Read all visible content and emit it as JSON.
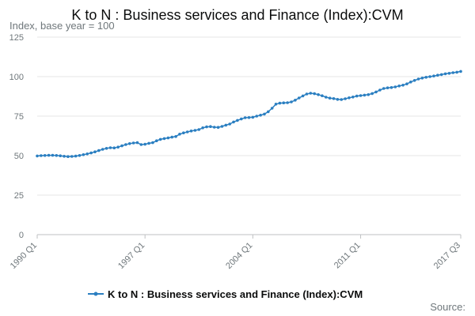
{
  "chart_data": {
    "type": "line",
    "title": "K to N : Business services and Finance (Index):CVM",
    "ylabel": "Index, base year = 100",
    "xlabel": "",
    "ylim": [
      0,
      125
    ],
    "yticks": [
      0,
      25,
      50,
      75,
      100,
      125
    ],
    "xtick_labels": [
      {
        "label": "1990 Q1",
        "index": 0
      },
      {
        "label": "1997 Q1",
        "index": 28
      },
      {
        "label": "2004 Q1",
        "index": 56
      },
      {
        "label": "2011 Q1",
        "index": 84
      },
      {
        "label": "2017 Q3",
        "index": 110
      }
    ],
    "grid": true,
    "legend_position": "bottom",
    "series": [
      {
        "name": "K to N : Business services and Finance (Index):CVM",
        "color": "#2b7fc1",
        "values": [
          49.8,
          50.0,
          50.1,
          50.2,
          50.2,
          50.1,
          49.9,
          49.6,
          49.4,
          49.5,
          49.7,
          50.1,
          50.6,
          51.1,
          51.7,
          52.4,
          53.2,
          54.0,
          54.6,
          55.0,
          54.9,
          55.4,
          56.2,
          57.0,
          57.6,
          58.0,
          58.2,
          57.0,
          57.2,
          57.8,
          58.2,
          59.4,
          60.3,
          60.8,
          61.2,
          61.7,
          62.1,
          63.6,
          64.4,
          65.0,
          65.6,
          66.0,
          66.5,
          67.6,
          68.2,
          68.4,
          68.0,
          67.9,
          68.5,
          69.3,
          70.0,
          71.3,
          72.3,
          73.2,
          74.0,
          74.1,
          74.3,
          75.0,
          75.6,
          76.3,
          77.8,
          80.0,
          82.6,
          83.2,
          83.4,
          83.5,
          84.0,
          85.1,
          86.5,
          87.8,
          89.0,
          89.5,
          89.2,
          88.6,
          87.9,
          87.0,
          86.4,
          86.1,
          85.6,
          85.5,
          86.0,
          86.6,
          87.1,
          87.7,
          88.0,
          88.3,
          88.6,
          89.3,
          90.3,
          91.5,
          92.5,
          92.9,
          93.1,
          93.5,
          94.1,
          94.6,
          95.4,
          96.6,
          97.6,
          98.5,
          99.1,
          99.6,
          100.0,
          100.4,
          100.9,
          101.3,
          101.8,
          102.1,
          102.5,
          102.8,
          103.3
        ]
      }
    ]
  },
  "footer": {
    "source_label": "Source:"
  }
}
